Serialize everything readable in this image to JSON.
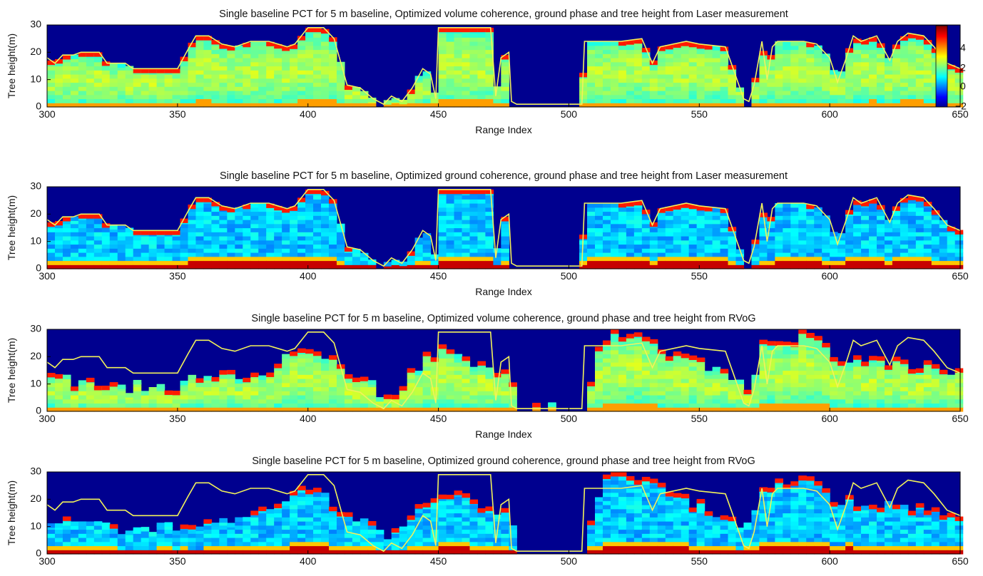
{
  "figure": {
    "colorbar": {
      "ticks": [
        "4",
        "2",
        "0",
        "−2"
      ],
      "range": [
        -2,
        6
      ]
    }
  },
  "chart_data": [
    {
      "type": "heatmap",
      "title": "Single baseline PCT for 5 m baseline, Optimized volume coherence, ground phase and tree height from Laser measurement",
      "xlabel": "Range Index",
      "ylabel": "Tree height(m)",
      "xlim": [
        300,
        650
      ],
      "ylim": [
        0,
        30
      ],
      "xticks": [
        "300",
        "350",
        "400",
        "450",
        "500",
        "550",
        "600",
        "650"
      ],
      "yticks": [
        "0",
        "10",
        "20",
        "30"
      ],
      "colorbar": true,
      "height_line": {
        "name": "tree height",
        "x": [
          300,
          303,
          306,
          310,
          313,
          320,
          323,
          330,
          333,
          338,
          345,
          350,
          354,
          357,
          362,
          367,
          372,
          378,
          385,
          392,
          395,
          400,
          406,
          410,
          415,
          420,
          425,
          429,
          432,
          436,
          440,
          444,
          447,
          449,
          450,
          452,
          458,
          465,
          470,
          472,
          474,
          477,
          478,
          480,
          490,
          500,
          505,
          506,
          510,
          520,
          528,
          532,
          535,
          545,
          550,
          560,
          563,
          567,
          569,
          571,
          574,
          576,
          578,
          580,
          585,
          590,
          595,
          600,
          603,
          606,
          609,
          612,
          618,
          623,
          626,
          630,
          636,
          640,
          645,
          650
        ],
        "y": [
          18,
          16,
          19,
          19,
          20,
          20,
          16,
          16,
          14,
          14,
          14,
          14,
          21,
          26,
          26,
          23,
          22,
          24,
          24,
          22,
          23,
          29,
          29,
          25,
          8,
          7,
          3,
          1,
          4,
          2,
          7,
          14,
          12,
          3,
          29,
          29,
          29,
          29,
          29,
          4,
          18,
          20,
          2,
          1,
          1,
          1,
          1,
          24,
          24,
          24,
          25,
          16,
          22,
          24,
          23,
          22,
          14,
          3,
          2,
          8,
          24,
          10,
          22,
          24,
          24,
          24,
          23,
          18,
          9,
          17,
          26,
          24,
          26,
          17,
          24,
          27,
          26,
          22,
          16,
          14
        ]
      },
      "intensity_profile": "volume"
    },
    {
      "type": "heatmap",
      "title": "Single baseline PCT for 5 m baseline, Optimized ground coherence, ground phase and tree height from Laser measurement",
      "xlabel": "Range Index",
      "ylabel": "Tree height(m)",
      "xlim": [
        300,
        650
      ],
      "ylim": [
        0,
        30
      ],
      "xticks": [
        "300",
        "350",
        "400",
        "450",
        "500",
        "550",
        "600",
        "650"
      ],
      "yticks": [
        "0",
        "10",
        "20",
        "30"
      ],
      "colorbar": false,
      "height_line": {
        "name": "tree height",
        "x": [
          300,
          303,
          306,
          310,
          313,
          320,
          323,
          330,
          333,
          338,
          345,
          350,
          354,
          357,
          362,
          367,
          372,
          378,
          385,
          392,
          395,
          400,
          406,
          410,
          415,
          420,
          425,
          429,
          432,
          436,
          440,
          444,
          447,
          449,
          450,
          452,
          458,
          465,
          470,
          472,
          474,
          477,
          478,
          480,
          490,
          500,
          505,
          506,
          510,
          520,
          528,
          532,
          535,
          545,
          550,
          560,
          563,
          567,
          569,
          571,
          574,
          576,
          578,
          580,
          585,
          590,
          595,
          600,
          603,
          606,
          609,
          612,
          618,
          623,
          626,
          630,
          636,
          640,
          645,
          650
        ],
        "y": [
          18,
          16,
          19,
          19,
          20,
          20,
          16,
          16,
          14,
          14,
          14,
          14,
          21,
          26,
          26,
          23,
          22,
          24,
          24,
          22,
          23,
          29,
          29,
          25,
          8,
          7,
          3,
          1,
          4,
          2,
          7,
          14,
          12,
          3,
          29,
          29,
          29,
          29,
          29,
          4,
          18,
          20,
          2,
          1,
          1,
          1,
          1,
          24,
          24,
          24,
          25,
          16,
          22,
          24,
          23,
          22,
          14,
          3,
          2,
          8,
          24,
          10,
          22,
          24,
          24,
          24,
          23,
          18,
          9,
          17,
          26,
          24,
          26,
          17,
          24,
          27,
          26,
          22,
          16,
          14
        ]
      },
      "intensity_profile": "ground"
    },
    {
      "type": "heatmap",
      "title": "Single baseline PCT for 5 m baseline, Optimized volume coherence, ground phase and tree height from RVoG",
      "xlabel": "Range Index",
      "ylabel": "Tree height(m)",
      "xlim": [
        300,
        650
      ],
      "ylim": [
        0,
        30
      ],
      "xticks": [
        "300",
        "350",
        "400",
        "450",
        "500",
        "550",
        "600",
        "650"
      ],
      "yticks": [
        "0",
        "10",
        "20",
        "30"
      ],
      "colorbar": false,
      "height_line": {
        "name": "laser tree height",
        "x": [
          300,
          303,
          306,
          310,
          313,
          320,
          323,
          330,
          333,
          338,
          345,
          350,
          354,
          357,
          362,
          367,
          372,
          378,
          385,
          392,
          395,
          400,
          406,
          410,
          415,
          420,
          425,
          429,
          432,
          436,
          440,
          444,
          447,
          449,
          450,
          452,
          458,
          465,
          470,
          472,
          474,
          477,
          478,
          480,
          490,
          500,
          505,
          506,
          510,
          520,
          528,
          532,
          535,
          545,
          550,
          560,
          563,
          567,
          569,
          571,
          574,
          576,
          578,
          580,
          585,
          590,
          595,
          600,
          603,
          606,
          609,
          612,
          618,
          623,
          626,
          630,
          636,
          640,
          645,
          650
        ],
        "y": [
          18,
          16,
          19,
          19,
          20,
          20,
          16,
          16,
          14,
          14,
          14,
          14,
          21,
          26,
          26,
          23,
          22,
          24,
          24,
          22,
          23,
          29,
          29,
          25,
          8,
          7,
          3,
          1,
          4,
          2,
          7,
          14,
          12,
          3,
          29,
          29,
          29,
          29,
          29,
          4,
          18,
          20,
          2,
          1,
          1,
          1,
          1,
          24,
          24,
          24,
          25,
          16,
          22,
          24,
          23,
          22,
          14,
          3,
          2,
          8,
          24,
          10,
          22,
          24,
          24,
          24,
          23,
          18,
          9,
          17,
          26,
          24,
          26,
          17,
          24,
          27,
          26,
          22,
          16,
          14
        ]
      },
      "rvog_height": {
        "x": [
          300,
          305,
          310,
          320,
          330,
          340,
          350,
          355,
          360,
          370,
          380,
          390,
          393,
          398,
          405,
          410,
          415,
          420,
          425,
          430,
          435,
          440,
          445,
          448,
          450,
          455,
          460,
          465,
          470,
          475,
          478,
          480,
          500,
          506,
          510,
          515,
          520,
          525,
          530,
          535,
          540,
          545,
          550,
          555,
          560,
          565,
          570,
          575,
          580,
          585,
          590,
          595,
          600,
          605,
          610,
          615,
          620,
          625,
          630,
          635,
          640,
          645,
          650
        ],
        "y": [
          13,
          12,
          11,
          10,
          9,
          9,
          10,
          11,
          12,
          13,
          15,
          17,
          24,
          24,
          22,
          18,
          13,
          12,
          10,
          4,
          10,
          14,
          19,
          21,
          22,
          23,
          21,
          17,
          15,
          16,
          16,
          1,
          1,
          1,
          18,
          29,
          29,
          28,
          29,
          25,
          21,
          20,
          18,
          16,
          15,
          12,
          8,
          27,
          26,
          25,
          29,
          27,
          22,
          20,
          19,
          18,
          19,
          18,
          18,
          17,
          16,
          16,
          15
        ]
      },
      "intensity_profile": "volume"
    },
    {
      "type": "heatmap",
      "title": "Single baseline PCT for 5 m baseline, Optimized ground coherence, ground phase and tree height from RVoG",
      "xlabel": "",
      "ylabel": "Tree height(m)",
      "xlim": [
        300,
        650
      ],
      "ylim": [
        0,
        30
      ],
      "xticks": [
        "300",
        "350",
        "400",
        "450",
        "500",
        "550",
        "600",
        "650"
      ],
      "yticks": [
        "0",
        "10",
        "20",
        "30"
      ],
      "colorbar": false,
      "height_line": {
        "name": "laser tree height",
        "x": [
          300,
          303,
          306,
          310,
          313,
          320,
          323,
          330,
          333,
          338,
          345,
          350,
          354,
          357,
          362,
          367,
          372,
          378,
          385,
          392,
          395,
          400,
          406,
          410,
          415,
          420,
          425,
          429,
          432,
          436,
          440,
          444,
          447,
          449,
          450,
          452,
          458,
          465,
          470,
          472,
          474,
          477,
          478,
          480,
          490,
          500,
          505,
          506,
          510,
          520,
          528,
          532,
          535,
          545,
          550,
          560,
          563,
          567,
          569,
          571,
          574,
          576,
          578,
          580,
          585,
          590,
          595,
          600,
          603,
          606,
          609,
          612,
          618,
          623,
          626,
          630,
          636,
          640,
          645,
          650
        ],
        "y": [
          18,
          16,
          19,
          19,
          20,
          20,
          16,
          16,
          14,
          14,
          14,
          14,
          21,
          26,
          26,
          23,
          22,
          24,
          24,
          22,
          23,
          29,
          29,
          25,
          8,
          7,
          3,
          1,
          4,
          2,
          7,
          14,
          12,
          3,
          29,
          29,
          29,
          29,
          29,
          4,
          18,
          20,
          2,
          1,
          1,
          1,
          1,
          24,
          24,
          24,
          25,
          16,
          22,
          24,
          23,
          22,
          14,
          3,
          2,
          8,
          24,
          10,
          22,
          24,
          24,
          24,
          23,
          18,
          9,
          17,
          26,
          24,
          26,
          17,
          24,
          27,
          26,
          22,
          16,
          14
        ]
      },
      "rvog_height": {
        "x": [
          300,
          305,
          310,
          320,
          330,
          340,
          350,
          355,
          360,
          370,
          380,
          390,
          393,
          398,
          405,
          410,
          415,
          420,
          425,
          430,
          435,
          440,
          445,
          448,
          450,
          455,
          460,
          465,
          470,
          475,
          478,
          480,
          500,
          506,
          510,
          515,
          520,
          525,
          530,
          535,
          540,
          545,
          550,
          555,
          560,
          565,
          570,
          575,
          580,
          585,
          590,
          595,
          600,
          605,
          610,
          615,
          620,
          625,
          630,
          635,
          640,
          645,
          650
        ],
        "y": [
          13,
          12,
          11,
          10,
          9,
          9,
          10,
          11,
          12,
          13,
          15,
          17,
          24,
          24,
          22,
          18,
          13,
          12,
          10,
          4,
          10,
          14,
          19,
          21,
          22,
          23,
          21,
          17,
          15,
          16,
          16,
          1,
          1,
          1,
          18,
          29,
          29,
          28,
          29,
          25,
          21,
          20,
          18,
          16,
          15,
          12,
          8,
          27,
          26,
          25,
          29,
          27,
          22,
          20,
          19,
          18,
          19,
          18,
          18,
          17,
          16,
          16,
          15
        ]
      },
      "intensity_profile": "ground"
    }
  ]
}
